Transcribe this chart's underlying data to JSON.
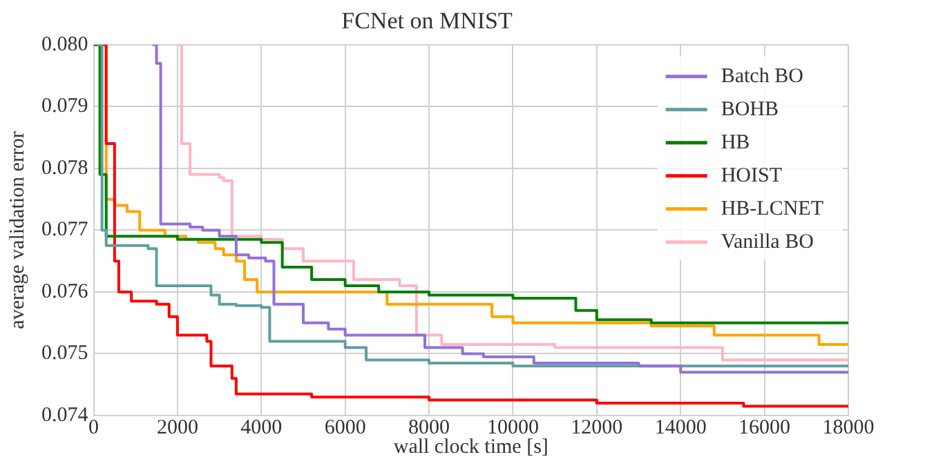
{
  "chart_data": {
    "type": "step",
    "title": "FCNet on MNIST",
    "xlabel": "wall clock time [s]",
    "ylabel": "average validation error",
    "xlim": [
      0,
      18000
    ],
    "xticks": [
      0,
      2000,
      4000,
      6000,
      8000,
      10000,
      12000,
      14000,
      16000,
      18000
    ],
    "ylim": [
      0.074,
      0.08
    ],
    "yticks": [
      {
        "value": 0.074,
        "label": "0.074"
      },
      {
        "value": 0.075,
        "label": "0.075"
      },
      {
        "value": 0.076,
        "label": "0.076"
      },
      {
        "value": 0.077,
        "label": "0.077"
      },
      {
        "value": 0.078,
        "label": "0.078"
      },
      {
        "value": 0.079,
        "label": "0.079"
      },
      {
        "value": 0.08,
        "label": "0.080"
      }
    ],
    "grid": true,
    "legend": "top right",
    "line_style": "solid",
    "marker": "none",
    "series": [
      {
        "name": "Batch BO",
        "color": "#9370db",
        "x": [
          1400,
          1500,
          1600,
          2300,
          2600,
          3000,
          3400,
          3700,
          4100,
          4300,
          5000,
          5600,
          6000,
          7900,
          8800,
          9300,
          10500,
          13000,
          14000,
          18000
        ],
        "values": [
          0.08,
          0.0797,
          0.0771,
          0.07705,
          0.077,
          0.0769,
          0.0766,
          0.07655,
          0.0765,
          0.0758,
          0.0755,
          0.0754,
          0.0753,
          0.0751,
          0.075,
          0.07495,
          0.07485,
          0.0748,
          0.0747,
          0.0747
        ]
      },
      {
        "name": "BOHB",
        "color": "#5f9ea0",
        "x": [
          100,
          200,
          300,
          1300,
          1500,
          2800,
          3000,
          3400,
          4000,
          4200,
          6000,
          6500,
          8000,
          10000,
          18000
        ],
        "values": [
          0.08,
          0.077,
          0.07675,
          0.0767,
          0.0761,
          0.07595,
          0.0758,
          0.07578,
          0.07575,
          0.0752,
          0.0751,
          0.0749,
          0.07485,
          0.0748,
          0.0748
        ]
      },
      {
        "name": "HB",
        "color": "#008000",
        "x": [
          0,
          150,
          300,
          2000,
          4000,
          4500,
          5200,
          6000,
          6800,
          8000,
          10000,
          11500,
          12000,
          13300,
          18000
        ],
        "values": [
          0.08,
          0.0779,
          0.0769,
          0.07685,
          0.0768,
          0.0764,
          0.0762,
          0.0761,
          0.076,
          0.07595,
          0.0759,
          0.0757,
          0.07555,
          0.0755,
          0.0755
        ]
      },
      {
        "name": "HOIST",
        "color": "#ff0000",
        "x": [
          200,
          300,
          500,
          600,
          900,
          1500,
          1800,
          2000,
          2700,
          2800,
          3300,
          3400,
          5200,
          8000,
          12000,
          15500,
          18000
        ],
        "values": [
          0.08,
          0.0784,
          0.0765,
          0.076,
          0.07585,
          0.0758,
          0.0756,
          0.0753,
          0.0752,
          0.0748,
          0.0746,
          0.07435,
          0.0743,
          0.07425,
          0.0742,
          0.07415,
          0.07415
        ]
      },
      {
        "name": "HB-LCNET",
        "color": "#ffa500",
        "x": [
          100,
          300,
          500,
          800,
          1100,
          1700,
          2200,
          2500,
          2900,
          3100,
          3400,
          3600,
          3900,
          7000,
          9500,
          10000,
          13300,
          14800,
          17300,
          18000
        ],
        "values": [
          0.08,
          0.0775,
          0.0774,
          0.0773,
          0.077,
          0.0769,
          0.07685,
          0.0768,
          0.0767,
          0.0766,
          0.0765,
          0.0762,
          0.076,
          0.0758,
          0.0756,
          0.0755,
          0.07545,
          0.0753,
          0.07515,
          0.07515
        ]
      },
      {
        "name": "Vanilla BO",
        "color": "#ffb6c1",
        "x": [
          2000,
          2100,
          2300,
          3000,
          3100,
          3300,
          4000,
          4500,
          5000,
          6200,
          7300,
          7700,
          8300,
          11000,
          15000,
          18000
        ],
        "values": [
          0.08,
          0.0784,
          0.0779,
          0.07785,
          0.0778,
          0.0769,
          0.07685,
          0.0767,
          0.0765,
          0.0762,
          0.0761,
          0.0753,
          0.07515,
          0.0751,
          0.0749,
          0.0749
        ]
      }
    ]
  }
}
